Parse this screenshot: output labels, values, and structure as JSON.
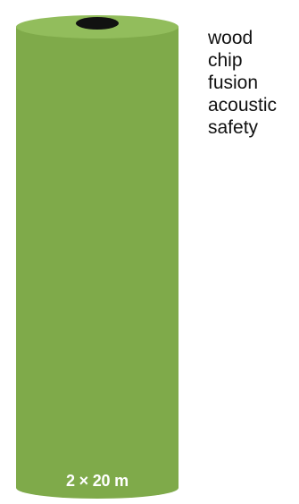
{
  "product": {
    "size_label": "2 × 20 m",
    "color": "#7faa4a",
    "top_color": "#92bd5c",
    "core_color": "#111111",
    "features": [
      "wood",
      "chip",
      "fusion",
      "acoustic",
      "safety"
    ]
  }
}
